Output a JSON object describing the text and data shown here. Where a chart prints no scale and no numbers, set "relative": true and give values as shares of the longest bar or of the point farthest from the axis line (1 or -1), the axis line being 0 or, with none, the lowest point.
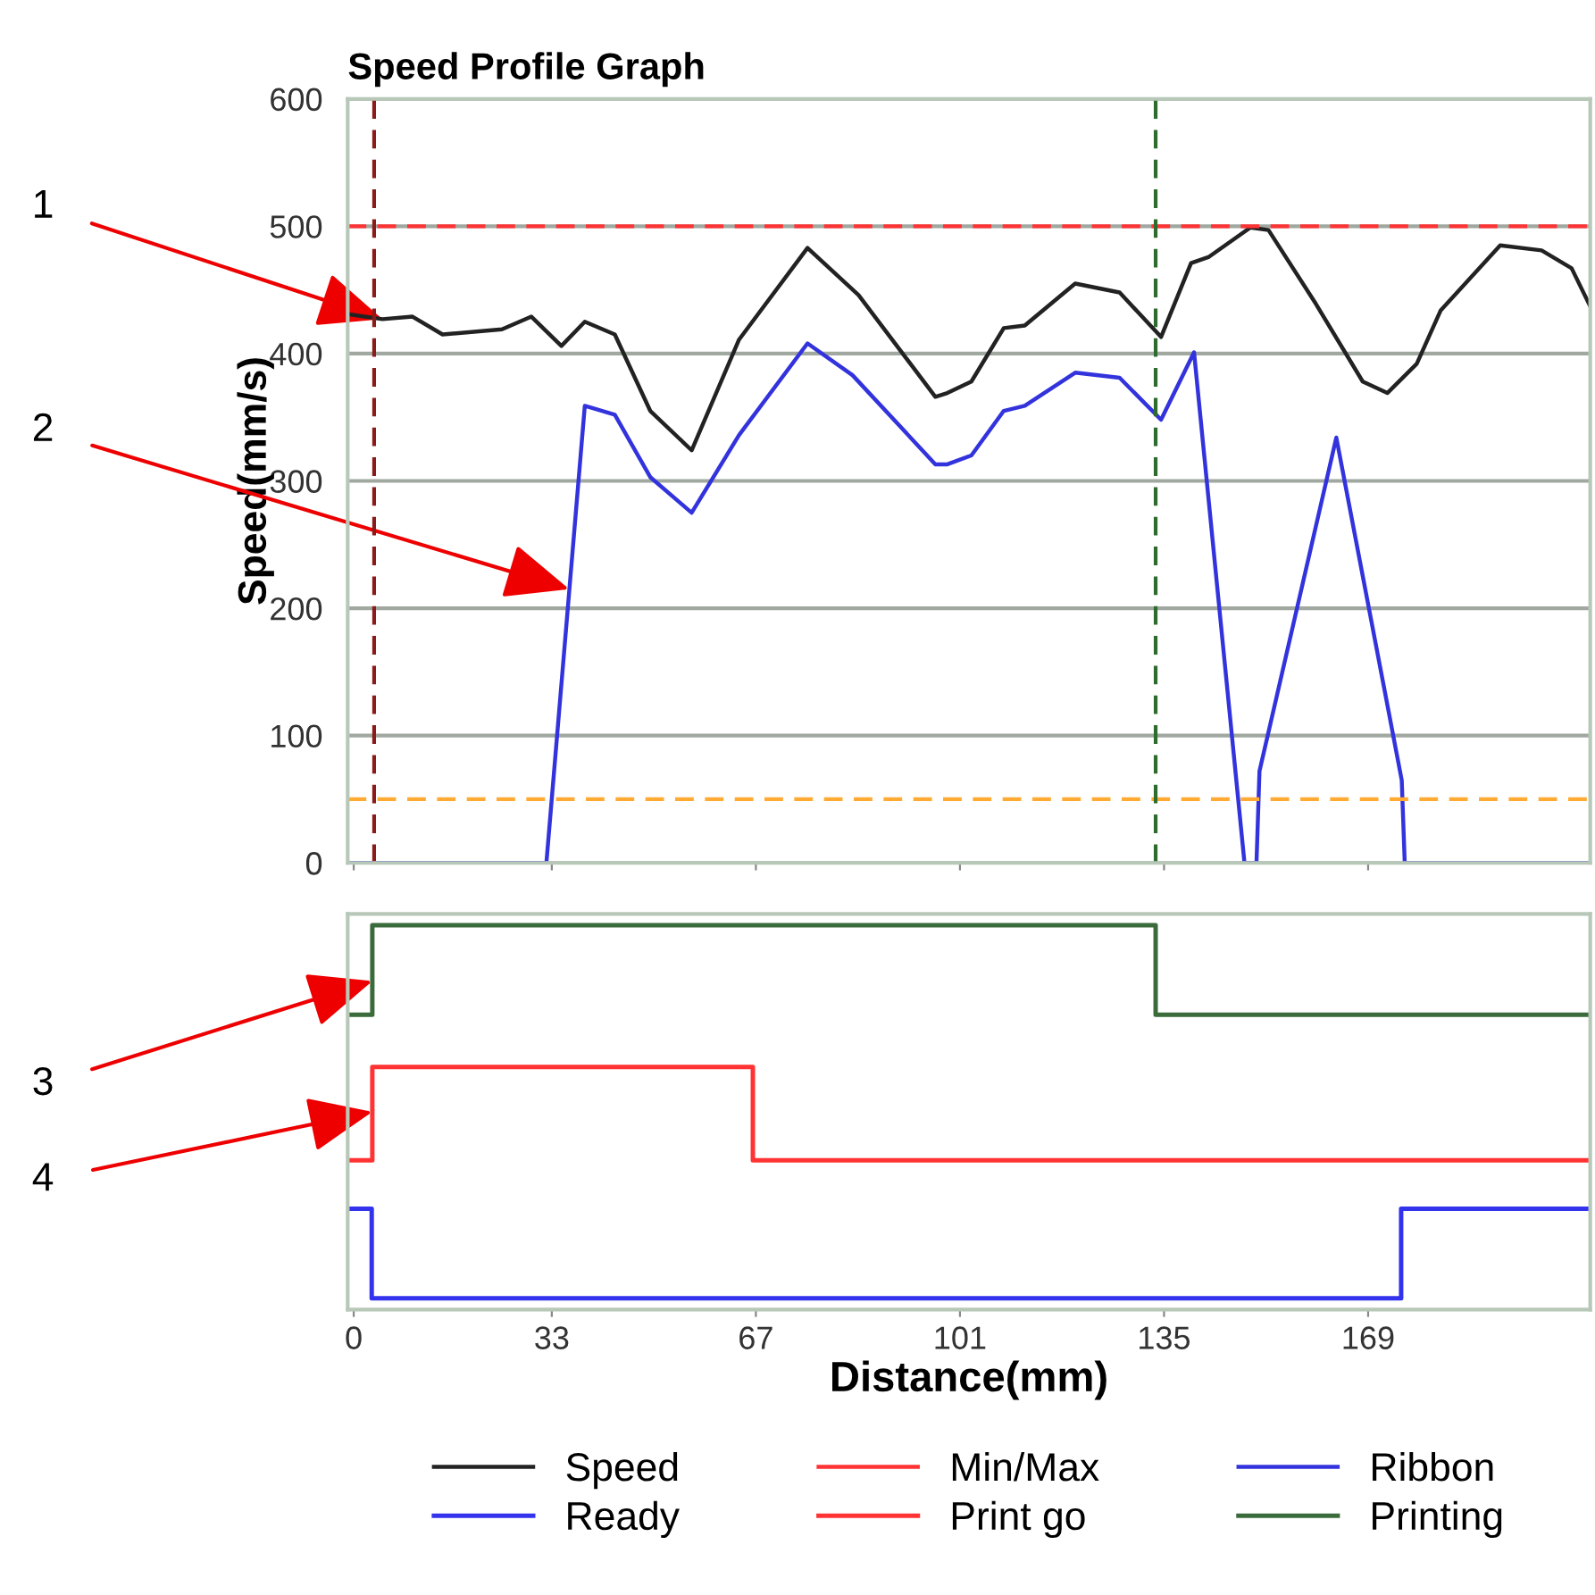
{
  "chart_data": [
    {
      "type": "line",
      "title": "Speed Profile Graph",
      "ylabel": "Speed(mm/s)",
      "xlim": [
        -1,
        206
      ],
      "xticks": [
        0,
        33,
        67,
        101,
        135,
        169
      ],
      "ylim": [
        0,
        600
      ],
      "yticks": [
        0,
        100,
        200,
        300,
        400,
        500,
        600
      ],
      "tick_labels": "y",
      "grid": "y",
      "legend": "bottom",
      "series": [
        {
          "name": "Speed",
          "color": "#222222",
          "x": [
            -1,
            4.8,
            9.8,
            14.8,
            24.7,
            29.6,
            34.6,
            38.5,
            43.5,
            49.4,
            56.3,
            64.2,
            75.6,
            84.1,
            96.9,
            98.9,
            102.9,
            108.3,
            111.8,
            120.2,
            127.6,
            134.5,
            139.5,
            142.5,
            149.4,
            152.4,
            160.3,
            168.1,
            172.2,
            177.1,
            181.1,
            191,
            197.9,
            202.9,
            206
          ],
          "values": [
            431,
            427,
            429,
            415,
            419,
            429,
            406,
            425,
            415,
            355,
            324,
            411,
            483,
            446,
            366,
            369,
            378,
            420,
            422,
            455,
            448,
            413,
            471,
            476,
            499,
            497,
            439,
            378,
            369,
            392,
            434,
            485,
            481,
            467,
            437
          ]
        },
        {
          "name": "Ribbon",
          "color": "#3333dd",
          "x": [
            -1,
            32.1,
            38.5,
            43.5,
            49.4,
            56.3,
            64.2,
            75.6,
            83.1,
            96.9,
            98.9,
            102.9,
            108.3,
            111.8,
            120.2,
            127.6,
            134.5,
            140,
            148.4,
            150.4,
            150.9,
            163.7,
            174.6,
            175.1,
            206
          ],
          "values": [
            0,
            0,
            359,
            352,
            303,
            275,
            336,
            408,
            383,
            313,
            313,
            320,
            355,
            359,
            385,
            381,
            348,
            401,
            0,
            0,
            72,
            334,
            65,
            0,
            0
          ]
        }
      ],
      "ref_lines": [
        {
          "axis": "y",
          "value": 500,
          "label": "Min/Max",
          "color": "#ff3333",
          "line_style": "dashed"
        },
        {
          "axis": "y",
          "value": 50,
          "color": "#ffaa33",
          "line_style": "dashed"
        },
        {
          "axis": "x",
          "value": 3.4,
          "color": "#8b1a1a",
          "line_style": "dashed"
        },
        {
          "axis": "x",
          "value": 133.6,
          "color": "#2e6b2e",
          "line_style": "dashed"
        }
      ],
      "annotations": [
        {
          "text": "1",
          "x": 4.8,
          "y": 427
        },
        {
          "text": "2",
          "x": 35.9,
          "y": 215
        }
      ]
    },
    {
      "type": "step",
      "xlabel": "Distance(mm)",
      "relative": true,
      "xlim": [
        -1,
        206
      ],
      "xticks": [
        0,
        33,
        67,
        101,
        135,
        169
      ],
      "tick_labels": "x",
      "legend": "bottom",
      "series": [
        {
          "name": "Ready",
          "color": "#3333ee",
          "x": [
            -1,
            3.0,
            174.5,
            206
          ],
          "values": [
            0.24,
            0,
            0.24,
            0.24
          ]
        },
        {
          "name": "Print go",
          "color": "#ff3333",
          "x": [
            -1,
            3.1,
            66.5,
            206
          ],
          "values": [
            0.37,
            0.62,
            0.37,
            0.37
          ]
        },
        {
          "name": "Printing",
          "color": "#3a6b3a",
          "x": [
            -1,
            3.1,
            133.6,
            206
          ],
          "values": [
            0.76,
            1,
            0.76,
            0.76
          ]
        }
      ],
      "annotations": [
        {
          "text": "3",
          "x": 3.1,
          "y": 0.85
        },
        {
          "text": "4",
          "x": 3.1,
          "y": 0.5
        }
      ]
    }
  ]
}
